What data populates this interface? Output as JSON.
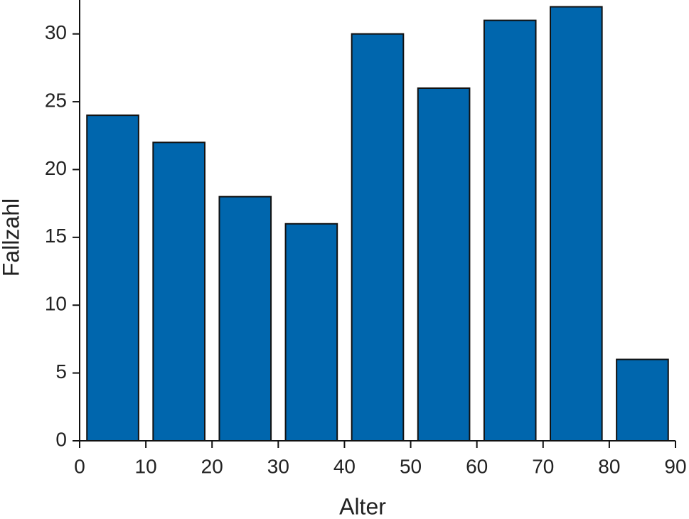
{
  "chart_data": {
    "type": "histogram",
    "x_label": "Alter",
    "y_label": "Fallzahl",
    "bins": [
      0,
      10,
      20,
      30,
      40,
      50,
      60,
      70,
      80,
      90
    ],
    "values": [
      24,
      22,
      18,
      16,
      30,
      26,
      31,
      32,
      6
    ],
    "color": "#0066ad",
    "xlim": [
      0,
      90
    ],
    "xticks": [
      0,
      10,
      20,
      30,
      40,
      50,
      60,
      70,
      80,
      90
    ],
    "ylim": [
      0,
      32.5
    ],
    "yticks": [
      0,
      5,
      10,
      15,
      20,
      25,
      30
    ]
  }
}
